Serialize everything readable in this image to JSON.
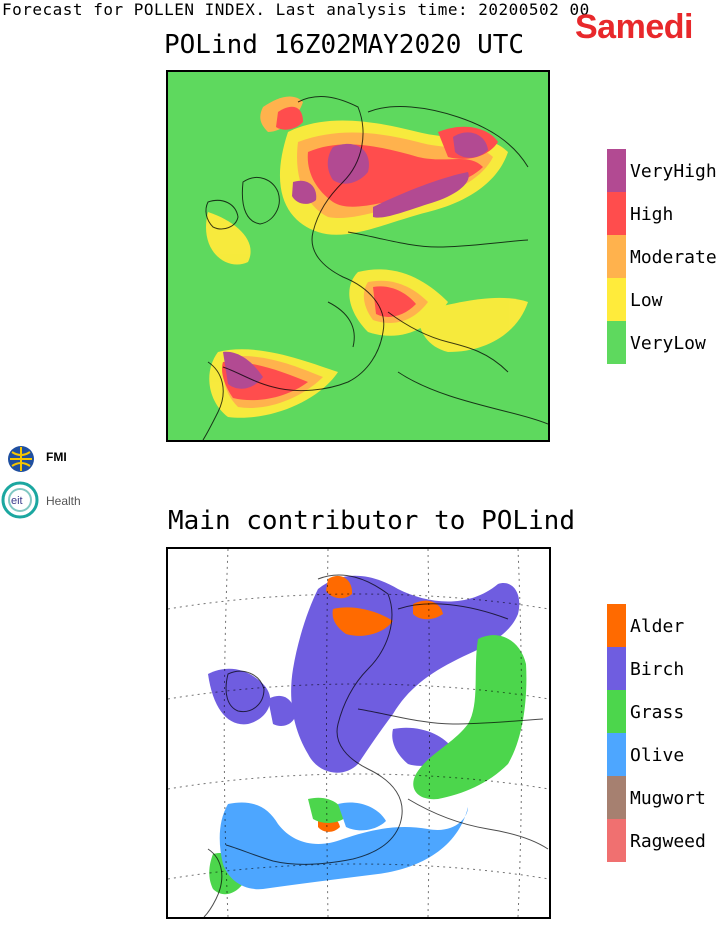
{
  "header": {
    "forecast_text": "Forecast for POLLEN INDEX. Last analysis time: 20200502 00",
    "day_label": "Samedi"
  },
  "panel_index": {
    "title": "POLind 16Z02MAY2020 UTC",
    "legend": [
      {
        "label": "VeryHigh",
        "color": "#b24a92"
      },
      {
        "label": "High",
        "color": "#ff4d4d"
      },
      {
        "label": "Moderate",
        "color": "#ffb24d"
      },
      {
        "label": "Low",
        "color": "#ffeb3b"
      },
      {
        "label": "VeryLow",
        "color": "#5ed95e"
      }
    ]
  },
  "panel_contributor": {
    "title": "Main contributor to POLind",
    "legend": [
      {
        "label": "Alder",
        "color": "#ff6a00"
      },
      {
        "label": "Birch",
        "color": "#6f5de0"
      },
      {
        "label": "Grass",
        "color": "#4cd64c"
      },
      {
        "label": "Olive",
        "color": "#4da6ff"
      },
      {
        "label": "Mugwort",
        "color": "#a68070"
      },
      {
        "label": "Ragweed",
        "color": "#f07070"
      }
    ]
  },
  "logos": {
    "fmi": "FMI",
    "eit": "eit",
    "health": "Health"
  }
}
